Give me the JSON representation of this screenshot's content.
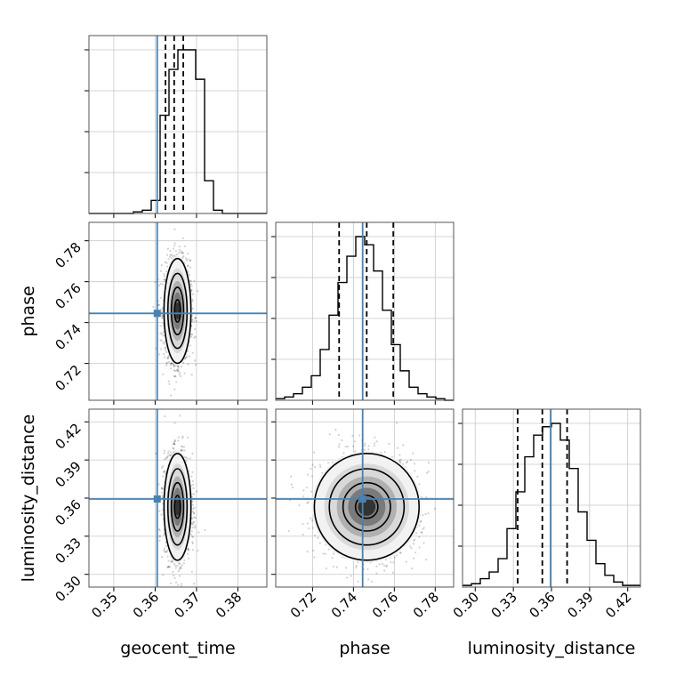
{
  "chart_data": {
    "type": "corner",
    "truth_color": "#4682b4",
    "parameters": [
      {
        "name": "geocent_time",
        "label": "geocent_time",
        "range": [
          0.344,
          0.387
        ],
        "truth": 0.3605,
        "quantiles": [
          0.3625,
          0.3646,
          0.3668
        ],
        "ticks": [
          0.35,
          0.36,
          0.37,
          0.38
        ],
        "tick_labels": [
          "0.35",
          "0.36",
          "0.37",
          "0.38"
        ]
      },
      {
        "name": "phase",
        "label": "phase",
        "range": [
          0.702,
          0.789
        ],
        "truth": 0.7445,
        "quantiles": [
          0.733,
          0.7465,
          0.7595
        ],
        "ticks": [
          0.72,
          0.74,
          0.76,
          0.78
        ],
        "tick_labels": [
          "0.72",
          "0.74",
          "0.76",
          "0.78"
        ]
      },
      {
        "name": "luminosity_distance",
        "label": "luminosity_distance",
        "range": [
          0.29,
          0.43
        ],
        "truth": 0.3593,
        "quantiles": [
          0.3334,
          0.3528,
          0.3723
        ],
        "ticks": [
          0.3,
          0.33,
          0.36,
          0.39,
          0.42
        ],
        "tick_labels": [
          "0.30",
          "0.33",
          "0.36",
          "0.39",
          "0.42"
        ]
      }
    ],
    "histograms": [
      {
        "parameter": "geocent_time",
        "edges_start": 0.344,
        "bin_width": 0.00215,
        "counts": [
          0,
          0,
          0,
          0,
          0,
          1,
          2,
          8,
          60,
          88,
          100,
          100,
          82,
          20,
          2,
          0,
          0,
          0,
          0,
          0
        ]
      },
      {
        "parameter": "phase",
        "edges_start": 0.702,
        "bin_width": 0.00435,
        "counts": [
          1,
          2,
          4,
          8,
          15,
          31,
          52,
          72,
          88,
          100,
          95,
          79,
          55,
          34,
          18,
          8,
          4,
          2,
          1,
          0
        ]
      },
      {
        "parameter": "luminosity_distance",
        "edges_start": 0.29,
        "bin_width": 0.007,
        "counts": [
          1,
          2,
          5,
          9,
          17,
          35,
          57,
          78,
          91,
          96,
          98,
          88,
          71,
          45,
          28,
          14,
          7,
          3,
          1,
          1
        ]
      }
    ],
    "joint": [
      {
        "x": "geocent_time",
        "y": "phase",
        "center": [
          0.3654,
          0.7457
        ],
        "sigma": [
          0.00155,
          0.0122
        ]
      },
      {
        "x": "geocent_time",
        "y": "luminosity_distance",
        "center": [
          0.3654,
          0.3531
        ],
        "sigma": [
          0.00155,
          0.02
        ]
      },
      {
        "x": "phase",
        "y": "luminosity_distance",
        "center": [
          0.7465,
          0.3531
        ],
        "sigma": [
          0.0122,
          0.02
        ]
      }
    ],
    "grid": true
  }
}
